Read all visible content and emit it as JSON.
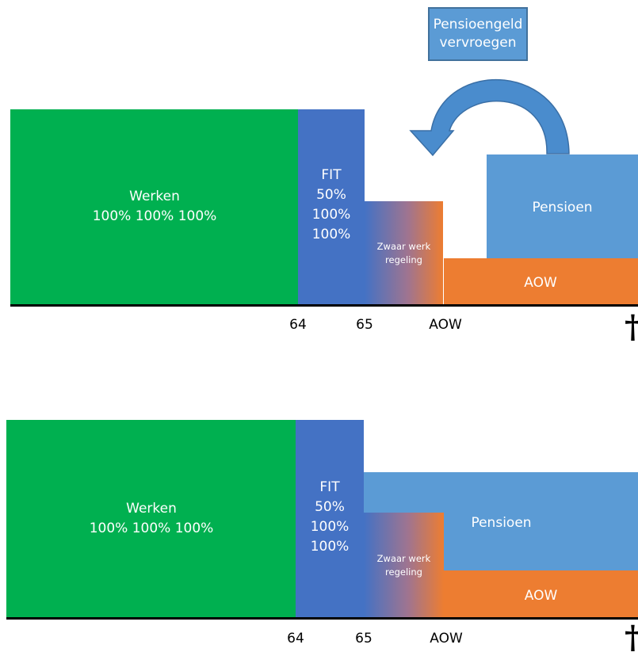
{
  "colors": {
    "werken": "#00b050",
    "fit": "#4472c4",
    "pensioen": "#5b9bd5",
    "aow": "#ed7d31",
    "arrow": "#4a8ccd"
  },
  "callout": {
    "line1": "Pensioengeld",
    "line2": "vervroegen"
  },
  "top": {
    "werken": {
      "line1": "Werken",
      "line2": "100% 100% 100%"
    },
    "fit": {
      "line1": "FIT",
      "line2": "50%",
      "line3": "100%",
      "line4": "100%"
    },
    "zwaar": {
      "line1": "Zwaar werk",
      "line2": "regeling"
    },
    "pensioen": "Pensioen",
    "aow": "AOW",
    "ticks": [
      "64",
      "65",
      "AOW"
    ],
    "death_symbol": "†"
  },
  "bottom": {
    "werken": {
      "line1": "Werken",
      "line2": "100% 100% 100%"
    },
    "fit": {
      "line1": "FIT",
      "line2": "50%",
      "line3": "100%",
      "line4": "100%"
    },
    "zwaar": {
      "line1": "Zwaar werk",
      "line2": "regeling"
    },
    "pensioen": "Pensioen",
    "aow": "AOW",
    "ticks": [
      "64",
      "65",
      "AOW"
    ],
    "death_symbol": "†"
  }
}
